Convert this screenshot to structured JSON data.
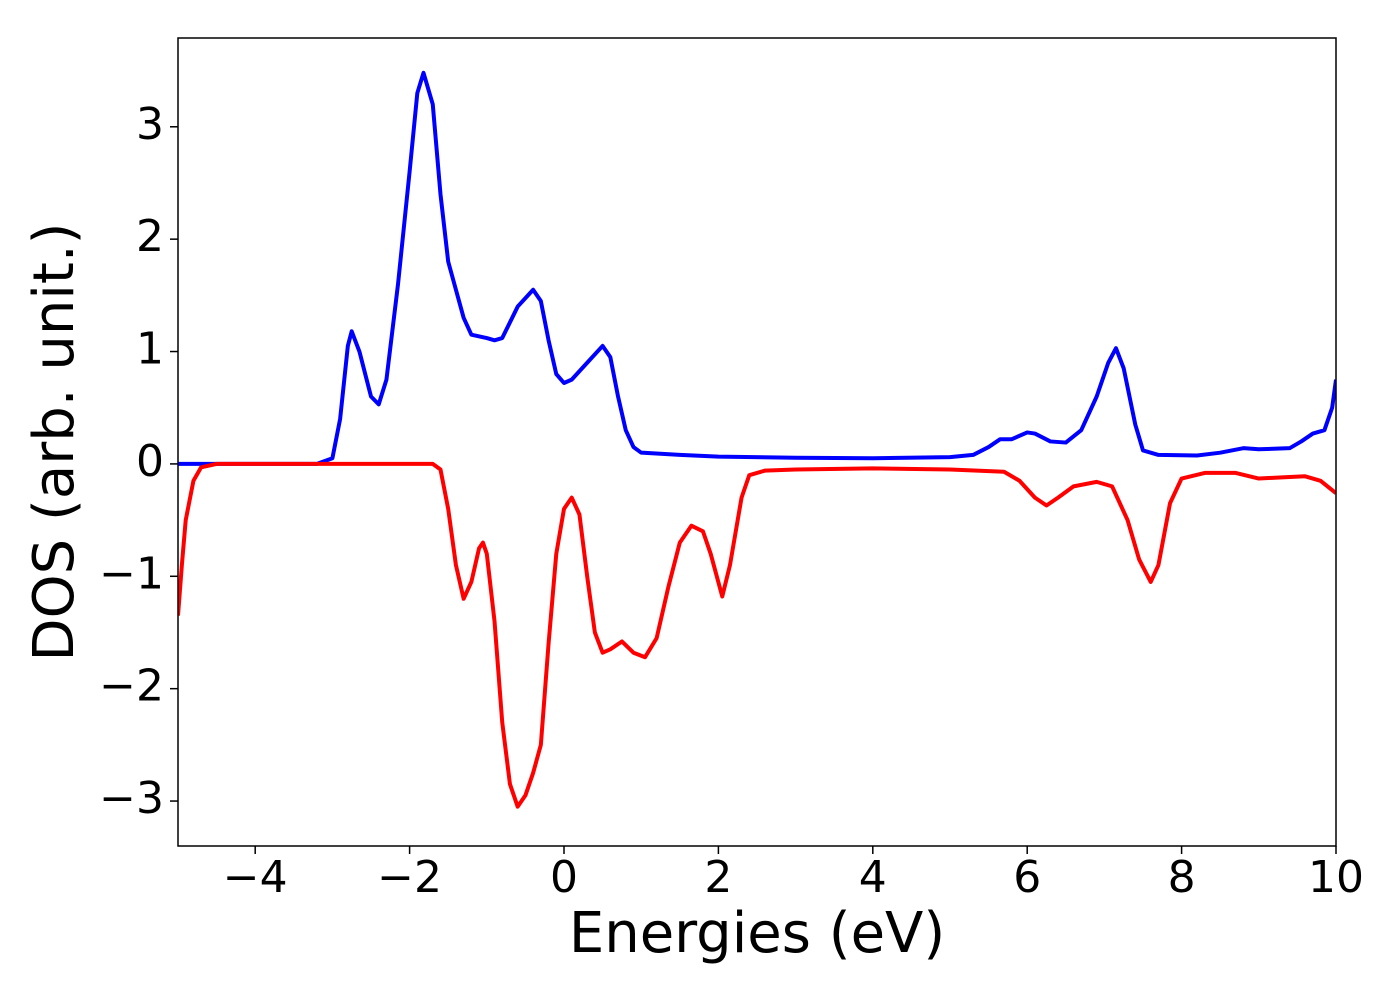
{
  "chart_data": {
    "type": "line",
    "xlabel": "Energies (eV)",
    "ylabel": "DOS (arb. unit.)",
    "xlim": [
      -5,
      10
    ],
    "ylim": [
      -3.4,
      3.79
    ],
    "xticks": [
      {
        "value": -4,
        "label": "−4"
      },
      {
        "value": -2,
        "label": "−2"
      },
      0,
      2,
      4,
      6,
      8,
      10
    ],
    "yticks": [
      {
        "value": -3,
        "label": "−3"
      },
      {
        "value": -2,
        "label": "−2"
      },
      {
        "value": -1,
        "label": "−1"
      },
      0,
      1,
      2,
      3
    ],
    "series": [
      {
        "color": "#0000ff",
        "x": [
          -5,
          -3.2,
          -3.0,
          -2.9,
          -2.8,
          -2.75,
          -2.65,
          -2.5,
          -2.4,
          -2.3,
          -2.15,
          -2.0,
          -1.9,
          -1.82,
          -1.7,
          -1.6,
          -1.5,
          -1.4,
          -1.3,
          -1.2,
          -1.0,
          -0.9,
          -0.8,
          -0.6,
          -0.4,
          -0.3,
          -0.2,
          -0.1,
          0,
          0.1,
          0.3,
          0.5,
          0.6,
          0.7,
          0.8,
          0.9,
          1.0,
          1.5,
          2,
          3,
          4,
          5,
          5.3,
          5.5,
          5.65,
          5.8,
          6.0,
          6.1,
          6.3,
          6.5,
          6.7,
          6.9,
          7.05,
          7.15,
          7.25,
          7.4,
          7.5,
          7.7,
          8.2,
          8.5,
          8.8,
          9.0,
          9.4,
          9.55,
          9.7,
          9.85,
          9.95,
          10
        ],
        "values": [
          0,
          0,
          0.05,
          0.4,
          1.05,
          1.18,
          1.0,
          0.6,
          0.53,
          0.75,
          1.6,
          2.6,
          3.3,
          3.48,
          3.2,
          2.4,
          1.8,
          1.55,
          1.3,
          1.15,
          1.12,
          1.1,
          1.12,
          1.4,
          1.55,
          1.45,
          1.1,
          0.8,
          0.72,
          0.75,
          0.9,
          1.05,
          0.95,
          0.6,
          0.3,
          0.15,
          0.1,
          0.08,
          0.065,
          0.055,
          0.05,
          0.06,
          0.08,
          0.15,
          0.22,
          0.22,
          0.28,
          0.27,
          0.2,
          0.19,
          0.3,
          0.6,
          0.9,
          1.03,
          0.85,
          0.35,
          0.12,
          0.08,
          0.075,
          0.1,
          0.14,
          0.13,
          0.14,
          0.2,
          0.27,
          0.3,
          0.5,
          0.75
        ]
      },
      {
        "color": "#ff0000",
        "x": [
          -5,
          -4.95,
          -4.9,
          -4.8,
          -4.7,
          -4.5,
          -2,
          -1.7,
          -1.6,
          -1.5,
          -1.4,
          -1.3,
          -1.2,
          -1.1,
          -1.05,
          -1.0,
          -0.9,
          -0.8,
          -0.7,
          -0.6,
          -0.5,
          -0.4,
          -0.3,
          -0.2,
          -0.1,
          0,
          0.1,
          0.2,
          0.3,
          0.4,
          0.5,
          0.6,
          0.75,
          0.9,
          1.05,
          1.2,
          1.35,
          1.5,
          1.65,
          1.8,
          1.9,
          2.05,
          2.15,
          2.3,
          2.4,
          2.6,
          3,
          4,
          5,
          5.7,
          5.9,
          6.1,
          6.25,
          6.4,
          6.6,
          6.9,
          7.1,
          7.3,
          7.45,
          7.6,
          7.7,
          7.85,
          8.0,
          8.3,
          8.7,
          9.0,
          9.3,
          9.6,
          9.8,
          10
        ],
        "values": [
          -1.35,
          -0.9,
          -0.5,
          -0.15,
          -0.03,
          0,
          0,
          0,
          -0.05,
          -0.4,
          -0.9,
          -1.2,
          -1.05,
          -0.75,
          -0.7,
          -0.8,
          -1.4,
          -2.3,
          -2.85,
          -3.05,
          -2.95,
          -2.75,
          -2.5,
          -1.6,
          -0.8,
          -0.4,
          -0.3,
          -0.45,
          -1.0,
          -1.5,
          -1.68,
          -1.65,
          -1.58,
          -1.68,
          -1.72,
          -1.55,
          -1.1,
          -0.7,
          -0.55,
          -0.6,
          -0.8,
          -1.18,
          -0.9,
          -0.3,
          -0.1,
          -0.06,
          -0.05,
          -0.04,
          -0.05,
          -0.07,
          -0.15,
          -0.3,
          -0.37,
          -0.3,
          -0.2,
          -0.16,
          -0.2,
          -0.5,
          -0.85,
          -1.05,
          -0.9,
          -0.35,
          -0.13,
          -0.08,
          -0.08,
          -0.13,
          -0.12,
          -0.11,
          -0.15,
          -0.26
        ]
      }
    ]
  }
}
